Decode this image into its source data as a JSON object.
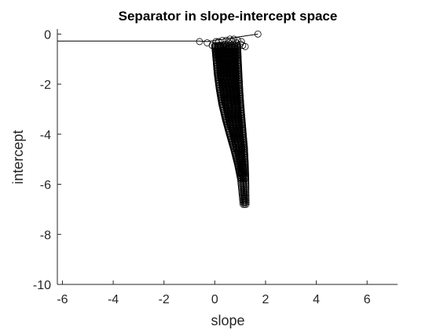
{
  "chart_data": {
    "type": "scatter",
    "title": "Separator in slope-intercept space",
    "xlabel": "slope",
    "ylabel": "intercept",
    "xlim": [
      -6.2,
      7.2
    ],
    "ylim": [
      -10,
      0.2
    ],
    "xticks": [
      -6,
      -4,
      -2,
      0,
      2,
      4,
      6
    ],
    "yticks": [
      0,
      -2,
      -4,
      -6,
      -8,
      -10
    ],
    "xtick_labels": [
      "-6",
      "-4",
      "-2",
      "0",
      "2",
      "4",
      "6"
    ],
    "ytick_labels": [
      "0",
      "-2",
      "-4",
      "-6",
      "-8",
      "-10"
    ],
    "grid": false,
    "legend": "none",
    "marker": "open-circle",
    "colors": {
      "marker": "#000000",
      "line": "#000000",
      "axes": "#262626"
    },
    "lines": [
      {
        "x": [
          -6.2,
          -0.6,
          -0.3,
          0.7,
          1.7
        ],
        "y": [
          -0.28,
          -0.28,
          -0.3,
          -0.15,
          0.0
        ]
      }
    ],
    "series": [
      {
        "x": [
          -0.6,
          -0.3,
          1.7,
          0.05,
          0.15,
          0.3,
          0.45,
          0.6,
          0.75,
          0.9,
          1.05,
          -0.1,
          0.0,
          0.2,
          0.4,
          0.55,
          0.7,
          0.85,
          1.0,
          1.1,
          1.2
        ],
        "y": [
          -0.3,
          -0.35,
          0.0,
          -0.3,
          -0.3,
          -0.25,
          -0.25,
          -0.2,
          -0.2,
          -0.25,
          -0.3,
          -0.45,
          -0.5,
          -0.45,
          -0.4,
          -0.35,
          -0.3,
          -0.35,
          -0.4,
          -0.45,
          -0.5
        ]
      },
      {
        "band_left_x": [
          0.0,
          0.05,
          0.1,
          0.18,
          0.28,
          0.42,
          0.58,
          0.75,
          0.9,
          1.02,
          1.12
        ],
        "band_right_x": [
          0.9,
          0.92,
          0.95,
          0.98,
          1.02,
          1.07,
          1.12,
          1.17,
          1.2,
          1.22,
          1.23
        ],
        "band_y": [
          -0.45,
          -1.0,
          -1.6,
          -2.2,
          -2.8,
          -3.4,
          -4.0,
          -4.6,
          -5.2,
          -5.8,
          -6.8
        ]
      }
    ]
  }
}
